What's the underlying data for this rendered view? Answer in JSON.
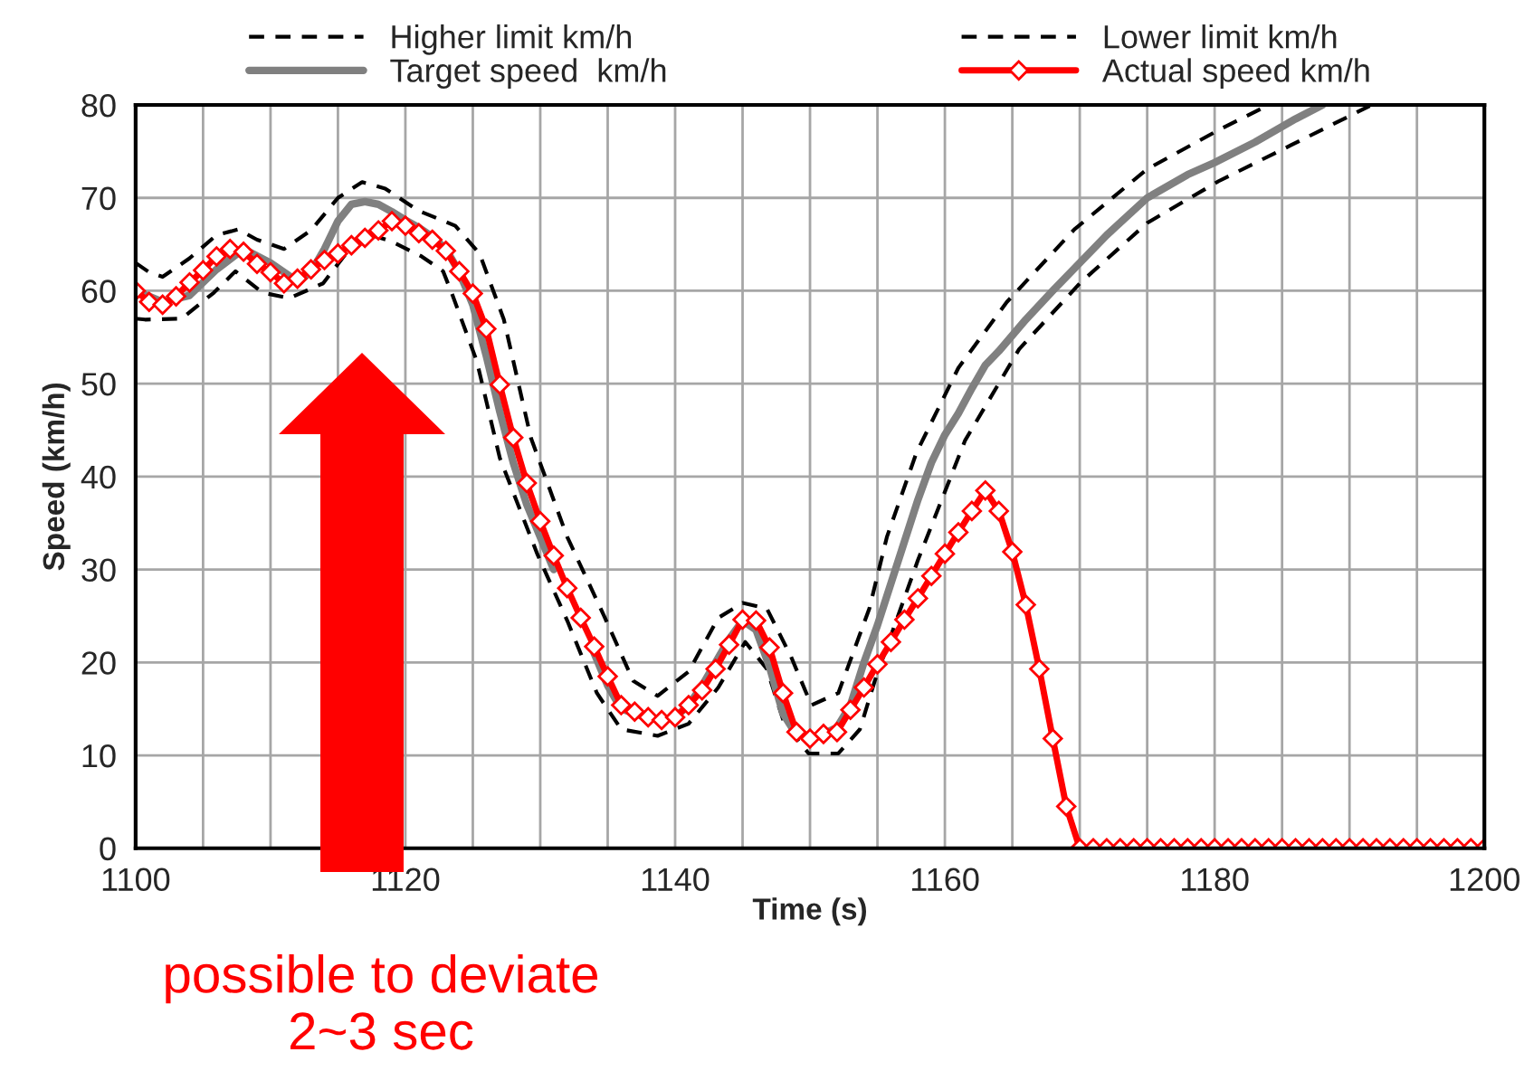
{
  "chart_data": {
    "type": "line",
    "xlabel": "Time (s)",
    "ylabel": "Speed (km/h)",
    "xlim": [
      1100,
      1200
    ],
    "ylim": [
      0,
      80
    ],
    "xticks": [
      1100,
      {
        "value": 1105,
        "label": null
      },
      {
        "value": 1110,
        "label": null
      },
      {
        "value": 1115,
        "label": null
      },
      1120,
      {
        "value": 1125,
        "label": null
      },
      {
        "value": 1130,
        "label": null
      },
      {
        "value": 1135,
        "label": null
      },
      1140,
      {
        "value": 1145,
        "label": null
      },
      {
        "value": 1150,
        "label": null
      },
      {
        "value": 1155,
        "label": null
      },
      1160,
      {
        "value": 1165,
        "label": null
      },
      {
        "value": 1170,
        "label": null
      },
      {
        "value": 1175,
        "label": null
      },
      1180,
      {
        "value": 1185,
        "label": null
      },
      {
        "value": 1190,
        "label": null
      },
      {
        "value": 1195,
        "label": null
      },
      1200
    ],
    "yticks": [
      0,
      10,
      20,
      30,
      40,
      50,
      60,
      70,
      80
    ],
    "grid": true,
    "legend": "top",
    "annotations": [
      "possible to deviate\n2~3 sec"
    ],
    "series": [
      {
        "name": "Higher limit km/h",
        "color": "#000000",
        "line_style": "dashed",
        "marker": "none",
        "x": [
          1100,
          1101,
          1102,
          1104,
          1106,
          1107.6,
          1109,
          1111,
          1113,
          1115,
          1116.8,
          1118.5,
          1121,
          1123.7,
          1125.5,
          1127.3,
          1129.3,
          1132,
          1134.7,
          1136.9,
          1138.7,
          1141,
          1143.2,
          1145,
          1146.8,
          1148.6,
          1150.1,
          1152.1,
          1154.4,
          1155.7,
          1157.9,
          1161,
          1164.6,
          1169.6,
          1175,
          1180.3,
          1184
        ],
        "values": [
          63,
          62,
          61.5,
          63.5,
          66,
          66.6,
          65.5,
          64.5,
          66.5,
          70,
          71.7,
          71,
          68.6,
          67,
          64,
          56.9,
          44.2,
          33.5,
          25.1,
          18,
          16.4,
          19,
          24.8,
          26.4,
          25.8,
          20.6,
          15.4,
          16.7,
          25.8,
          33.5,
          42.6,
          51.7,
          58.8,
          66.6,
          73.1,
          77.3,
          80
        ]
      },
      {
        "name": "Lower limit km/h",
        "color": "#000000",
        "line_style": "dashed",
        "marker": "none",
        "x": [
          1100,
          1100.7,
          1103.4,
          1105.8,
          1107.4,
          1109.4,
          1111.4,
          1113.9,
          1116.8,
          1119,
          1121.2,
          1122.8,
          1123.5,
          1125.3,
          1127,
          1129.8,
          1132,
          1134.2,
          1136,
          1138.7,
          1141,
          1143.2,
          1145.2,
          1146.8,
          1148.1,
          1149.9,
          1152.1,
          1153.7,
          1154.8,
          1158,
          1161.5,
          1165.5,
          1170,
          1175,
          1180.3,
          1185.7,
          1191.5
        ],
        "values": [
          57,
          56.9,
          57,
          59.8,
          62.1,
          59.8,
          59.2,
          60.8,
          66.3,
          65.3,
          63.7,
          62.1,
          59.5,
          52.4,
          42,
          31.6,
          24.5,
          16.7,
          12.8,
          12.1,
          13.4,
          17.3,
          22.2,
          19.3,
          13.4,
          10.2,
          10.2,
          12.8,
          18,
          31,
          43.9,
          53.7,
          60.8,
          67.3,
          71.8,
          75.7,
          79.9
        ]
      },
      {
        "name": "Target speed  km/h",
        "color": "#808080",
        "line_style": "solid",
        "marker": "none",
        "x": [
          1100,
          1102,
          1104,
          1106,
          1108,
          1110,
          1112,
          1113,
          1114,
          1115,
          1116,
          1117,
          1118,
          1119,
          1120,
          1121,
          1122,
          1123,
          1124,
          1125,
          1126,
          1127,
          1128,
          1129,
          1130,
          1131,
          1132,
          1133,
          1134,
          1135,
          1136,
          1137,
          1138,
          1139,
          1140,
          1141,
          1142,
          1143,
          1144,
          1145,
          1146,
          1147,
          1148,
          1149,
          1150,
          1151,
          1152,
          1153,
          1154,
          1155,
          1156,
          1157,
          1158,
          1159,
          1160,
          1161,
          1162,
          1163,
          1164,
          1166,
          1168,
          1170,
          1172,
          1175,
          1178,
          1180,
          1183,
          1186,
          1188
        ],
        "values": [
          60,
          58.8,
          59.5,
          62.3,
          64.5,
          63,
          61,
          62,
          64.5,
          67.5,
          69.3,
          69.6,
          69.3,
          68.5,
          67.6,
          66.8,
          65.8,
          64.5,
          62,
          58.5,
          53,
          47,
          41.5,
          37,
          33.5,
          30,
          null,
          null,
          21,
          17.5,
          15,
          14.5,
          14,
          13.8,
          14.1,
          15.4,
          17.5,
          20,
          22.5,
          24.5,
          23.5,
          19.5,
          14.5,
          12.2,
          null,
          12.3,
          13,
          15.4,
          20,
          24,
          28.5,
          33,
          37.5,
          41.5,
          44.5,
          46.8,
          49.5,
          52,
          53.5,
          56.9,
          60,
          63,
          66,
          70,
          72.5,
          73.8,
          76,
          78.5,
          80
        ]
      },
      {
        "name": "Actual speed km/h",
        "color": "#ff0000",
        "line_style": "solid",
        "marker": "diamond",
        "x": [
          1100,
          1101,
          1102,
          1103,
          1104,
          1105,
          1106,
          1107,
          1108,
          1109,
          1110,
          1111,
          1112,
          1113,
          1114,
          1115,
          1116,
          1117,
          1118,
          1119,
          1120,
          1121,
          1122,
          1123,
          1124,
          1125,
          1126,
          1127,
          1128,
          1129,
          1130,
          1131,
          1132,
          1133,
          1134,
          1135,
          1136,
          1137,
          1138,
          1139,
          1140,
          1141,
          1142,
          1143,
          1144,
          1145,
          1146,
          1147,
          1148,
          1149,
          1150,
          1151,
          1152,
          1153,
          1154,
          1155,
          1156,
          1157,
          1158,
          1159,
          1160,
          1161,
          1162,
          1163,
          1164,
          1165,
          1166,
          1167,
          1168,
          1169,
          1170,
          1171,
          1172,
          1173,
          1174,
          1175,
          1176,
          1177,
          1178,
          1179,
          1180,
          1181,
          1182,
          1183,
          1184,
          1185,
          1186,
          1187,
          1188,
          1189,
          1190,
          1191,
          1192,
          1193,
          1194,
          1195,
          1196,
          1197,
          1198,
          1199,
          1200
        ],
        "values": [
          60,
          58.8,
          58.5,
          59.4,
          60.9,
          62.2,
          63.7,
          64.5,
          64.2,
          62.9,
          62,
          60.8,
          61.3,
          62.3,
          63.3,
          64,
          64.9,
          65.7,
          66.5,
          67.5,
          67,
          66.2,
          65.5,
          64.3,
          62.1,
          59.7,
          55.9,
          49.9,
          44.2,
          39.3,
          35.2,
          31.5,
          28,
          24.8,
          21.7,
          18.5,
          15.4,
          14.7,
          14.1,
          13.8,
          14.1,
          15.4,
          17,
          19.3,
          21.9,
          24.6,
          24.5,
          21.6,
          16.7,
          12.5,
          11.8,
          12.3,
          12.5,
          14.9,
          17.3,
          19.8,
          22.2,
          24.6,
          26.9,
          29.3,
          31.7,
          34,
          36.3,
          38.5,
          36.3,
          31.9,
          26.2,
          19.3,
          11.8,
          4.5,
          0,
          0,
          0,
          0,
          0,
          0,
          0,
          0,
          0,
          0,
          0,
          0,
          0,
          0,
          0,
          0,
          0,
          0,
          0,
          0,
          0,
          0,
          0,
          0,
          0,
          0,
          0,
          0,
          0,
          0,
          0
        ]
      }
    ]
  }
}
